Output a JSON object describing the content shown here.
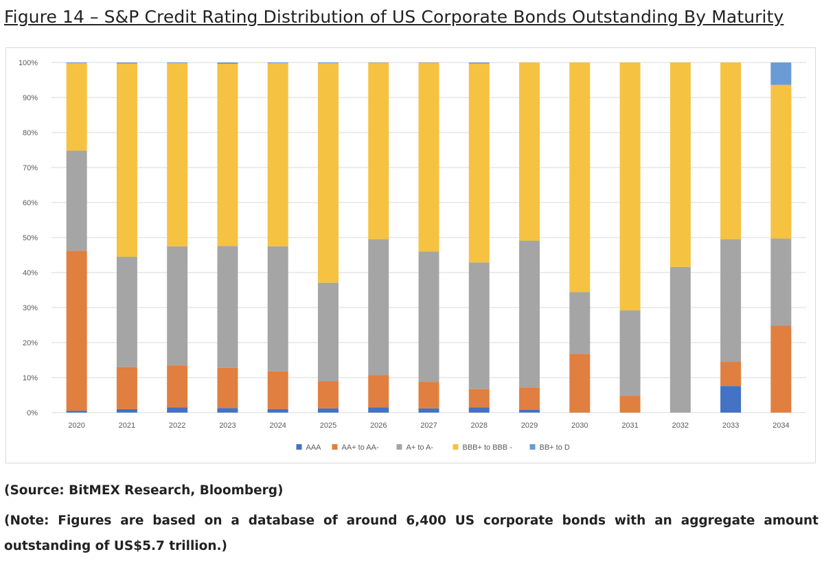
{
  "figure_title": "Figure 14 – S&P Credit Rating Distribution of US Corporate Bonds Outstanding By Maturity",
  "source_text": "(Source: BitMEX Research, Bloomberg)",
  "note_text": "(Note: Figures are based on a database of around 6,400 US corporate bonds with an aggregate amount outstanding of US$5.7 trillion.)",
  "chart_data": {
    "type": "bar",
    "stacked": true,
    "percent": true,
    "title": "",
    "xlabel": "",
    "ylabel": "",
    "ylim": [
      0,
      100
    ],
    "yticks": [
      "0%",
      "10%",
      "20%",
      "30%",
      "40%",
      "50%",
      "60%",
      "70%",
      "80%",
      "90%",
      "100%"
    ],
    "grid": true,
    "legend_position": "bottom",
    "categories": [
      "2020",
      "2021",
      "2022",
      "2023",
      "2024",
      "2025",
      "2026",
      "2027",
      "2028",
      "2029",
      "2030",
      "2031",
      "2032",
      "2033",
      "2034"
    ],
    "series": [
      {
        "name": "AAA",
        "color": "#4472c4",
        "values": [
          0.5,
          1.0,
          1.5,
          1.3,
          1.0,
          1.2,
          1.5,
          1.2,
          1.5,
          0.8,
          0.0,
          0.0,
          0.0,
          7.6,
          0.0
        ]
      },
      {
        "name": "AA+ to AA-",
        "color": "#e07f3f",
        "values": [
          45.7,
          12.0,
          12.0,
          11.5,
          10.8,
          7.8,
          9.2,
          7.6,
          5.2,
          6.4,
          16.8,
          4.8,
          0.0,
          6.9,
          24.8
        ]
      },
      {
        "name": "A+ to A-",
        "color": "#a5a5a5",
        "values": [
          28.6,
          31.5,
          34.0,
          34.8,
          35.7,
          28.1,
          38.8,
          37.2,
          36.2,
          41.9,
          17.6,
          24.4,
          41.6,
          35.0,
          24.9
        ]
      },
      {
        "name": "BBB+ to BBB -",
        "color": "#f5c242",
        "values": [
          25.0,
          55.2,
          52.3,
          52.0,
          52.3,
          62.7,
          50.4,
          53.9,
          56.8,
          50.9,
          65.6,
          70.8,
          58.4,
          50.5,
          43.9
        ]
      },
      {
        "name": "BB+ to D",
        "color": "#6a9bd4",
        "values": [
          0.2,
          0.3,
          0.2,
          0.4,
          0.2,
          0.2,
          0.1,
          0.1,
          0.3,
          0.0,
          0.0,
          0.0,
          0.0,
          0.0,
          6.4
        ]
      }
    ]
  }
}
